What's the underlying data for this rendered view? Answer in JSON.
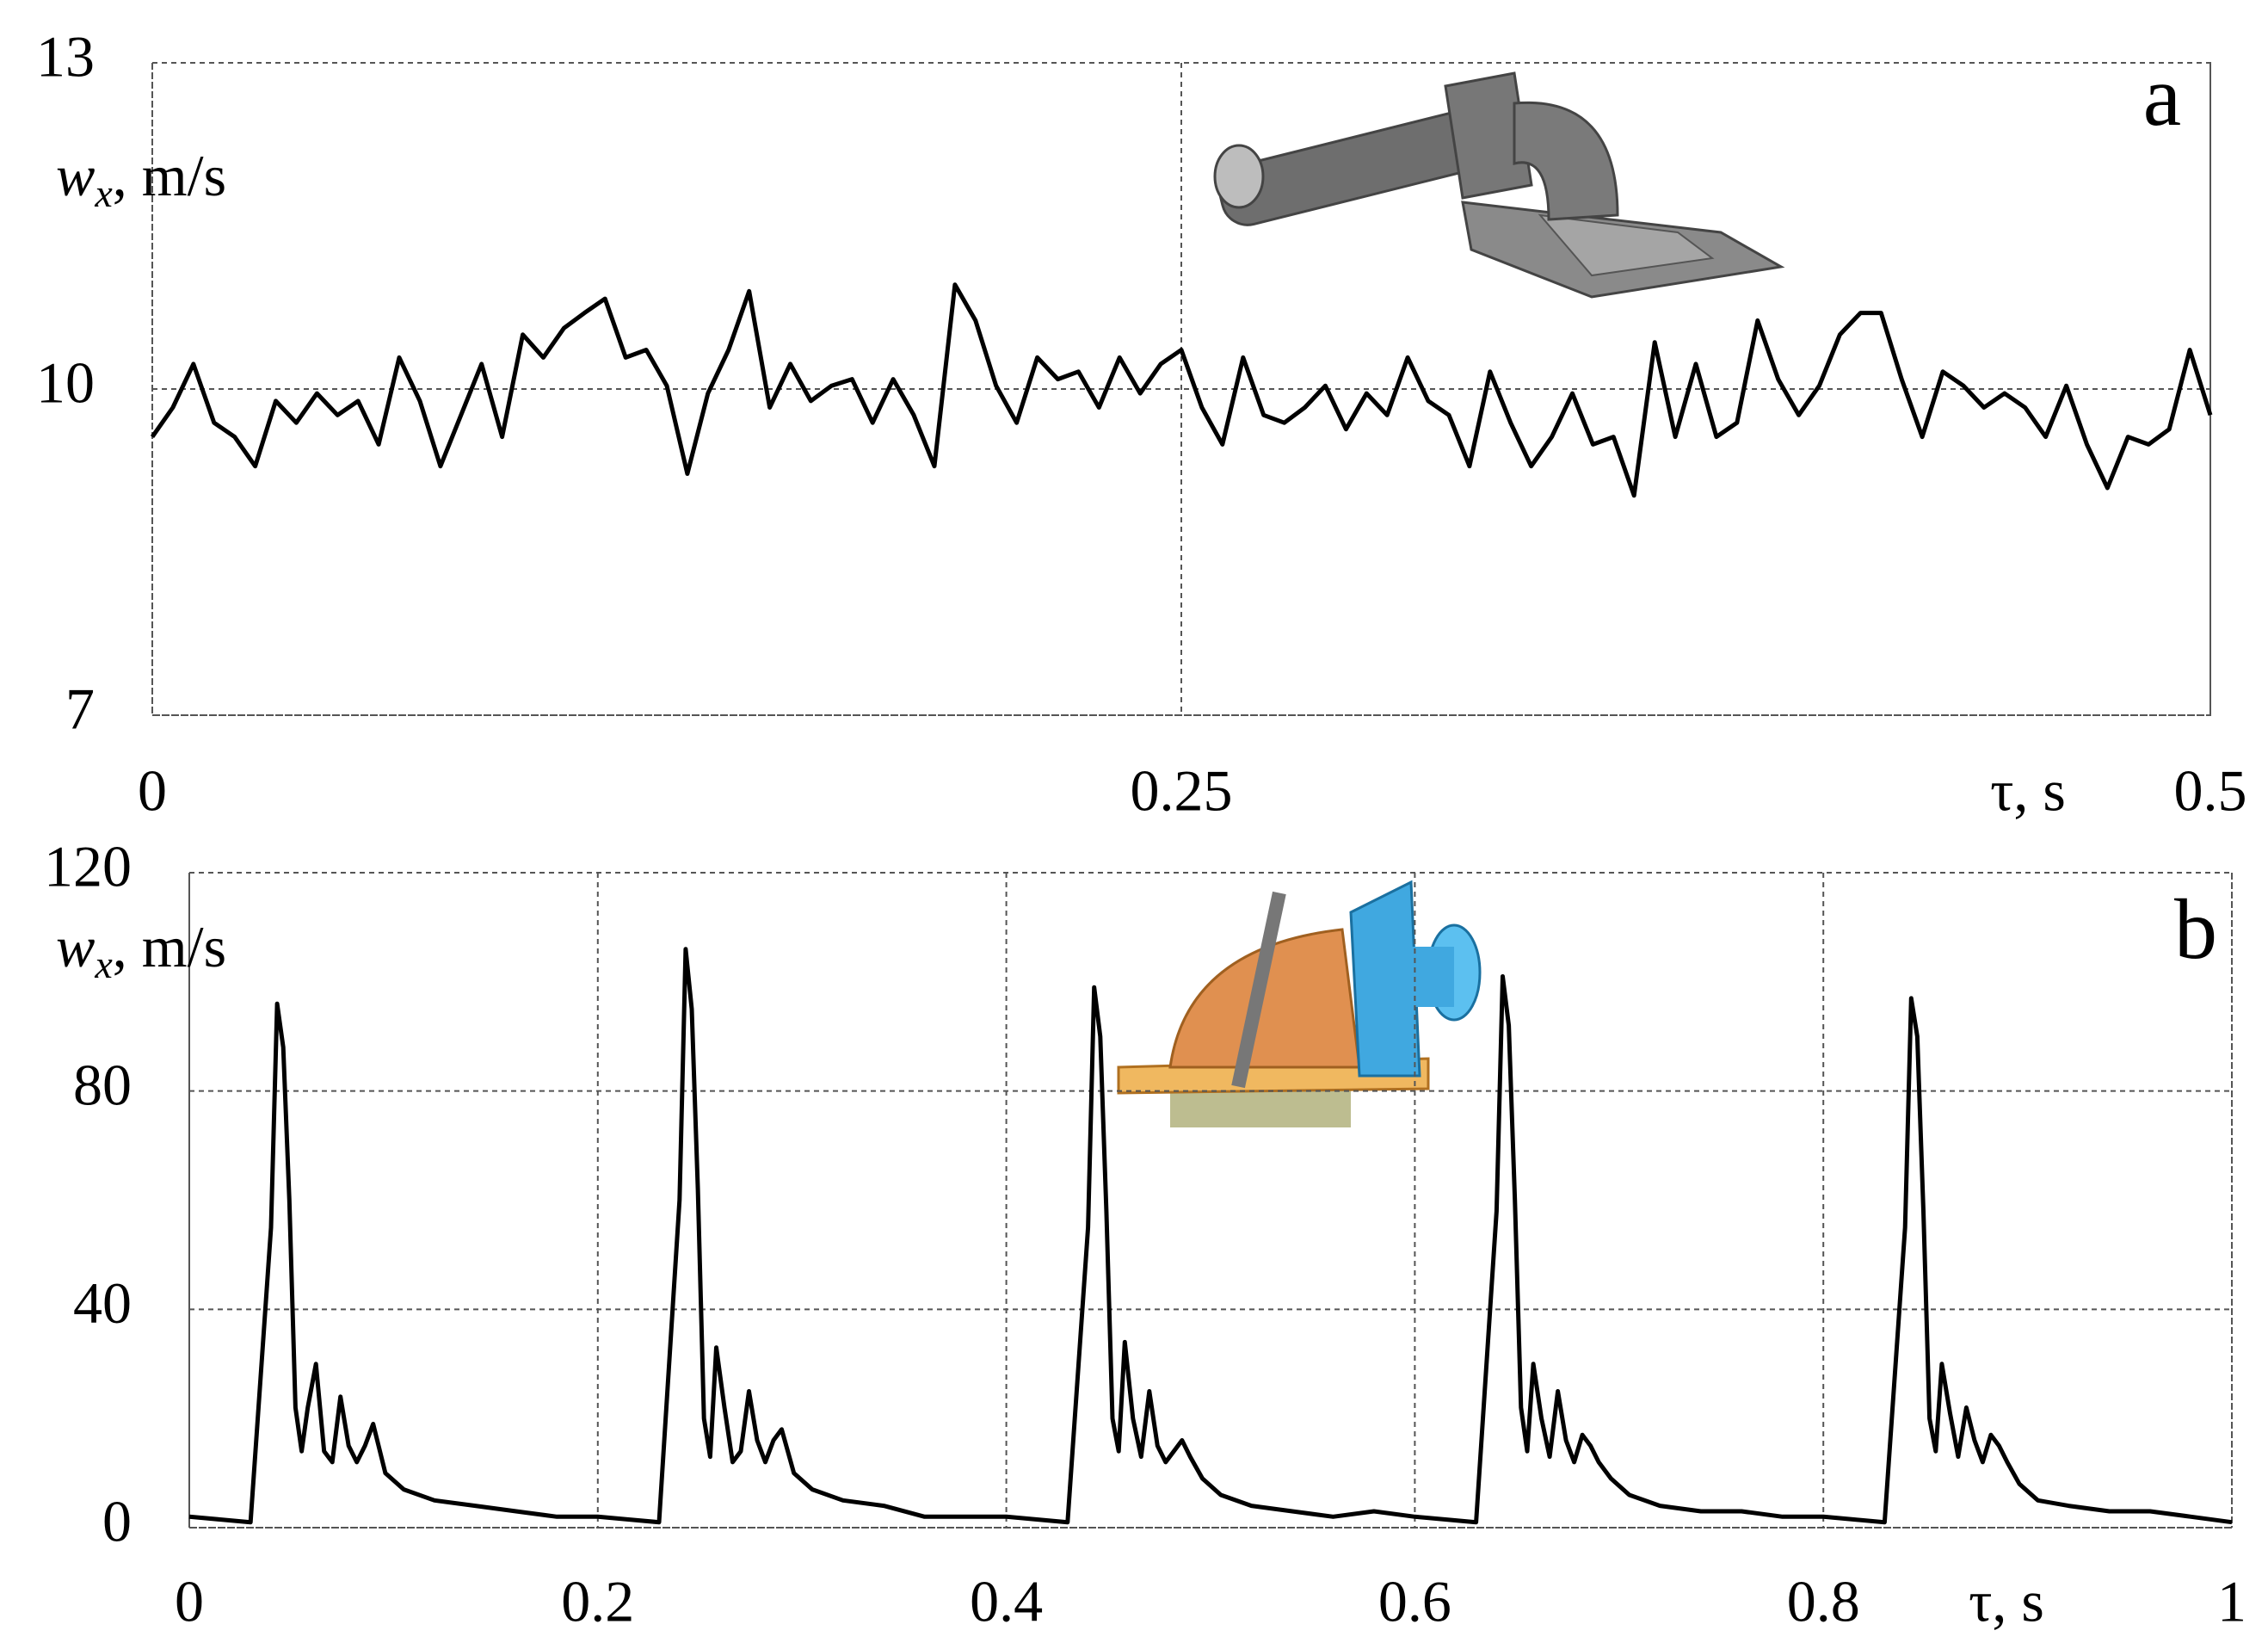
{
  "chart_data": [
    {
      "type": "line",
      "panel_label": "a",
      "xlabel": "τ, s",
      "ylabel": {
        "symbol": "w",
        "subscript": "x",
        "unit": ", m/s"
      },
      "xlim": [
        0,
        0.5
      ],
      "ylim": [
        7,
        13
      ],
      "xticks": [
        0,
        0.25,
        0.5
      ],
      "yticks": [
        7,
        10,
        13
      ],
      "grid": true,
      "color": "#000000",
      "x": [
        0,
        0.005,
        0.01,
        0.015,
        0.02,
        0.025,
        0.03,
        0.035,
        0.04,
        0.045,
        0.05,
        0.055,
        0.06,
        0.065,
        0.07,
        0.075,
        0.08,
        0.085,
        0.09,
        0.095,
        0.1,
        0.105,
        0.11,
        0.115,
        0.12,
        0.125,
        0.13,
        0.135,
        0.14,
        0.145,
        0.15,
        0.155,
        0.16,
        0.165,
        0.17,
        0.175,
        0.18,
        0.185,
        0.19,
        0.195,
        0.2,
        0.205,
        0.21,
        0.215,
        0.22,
        0.225,
        0.23,
        0.235,
        0.24,
        0.245,
        0.25,
        0.255,
        0.26,
        0.265,
        0.27,
        0.275,
        0.28,
        0.285,
        0.29,
        0.295,
        0.3,
        0.305,
        0.31,
        0.315,
        0.32,
        0.325,
        0.33,
        0.335,
        0.34,
        0.345,
        0.35,
        0.355,
        0.36,
        0.365,
        0.37,
        0.375,
        0.38,
        0.385,
        0.39,
        0.395,
        0.4,
        0.405,
        0.41,
        0.415,
        0.42,
        0.425,
        0.43,
        0.435,
        0.44,
        0.445,
        0.45,
        0.455,
        0.46,
        0.465,
        0.47,
        0.475,
        0.48,
        0.485,
        0.49,
        0.495,
        0.5
      ],
      "values": [
        9.56,
        9.83,
        10.23,
        9.69,
        9.56,
        9.29,
        9.89,
        9.69,
        9.96,
        9.76,
        9.89,
        9.49,
        10.29,
        9.89,
        9.29,
        9.76,
        10.23,
        9.56,
        10.5,
        10.29,
        10.56,
        10.7,
        10.83,
        10.29,
        10.36,
        10.03,
        9.22,
        9.96,
        10.36,
        10.9,
        9.83,
        10.23,
        9.89,
        10.03,
        10.09,
        9.69,
        10.09,
        9.76,
        9.29,
        10.96,
        10.63,
        10.03,
        9.69,
        10.29,
        10.09,
        10.16,
        9.83,
        10.29,
        9.96,
        10.23,
        10.36,
        9.83,
        9.49,
        10.29,
        9.76,
        9.69,
        9.83,
        10.03,
        9.63,
        9.96,
        9.76,
        10.29,
        9.89,
        9.76,
        9.29,
        10.16,
        9.69,
        9.29,
        9.56,
        9.96,
        9.49,
        9.56,
        9.02,
        10.43,
        9.56,
        10.23,
        9.56,
        9.69,
        10.63,
        10.09,
        9.76,
        10.03,
        10.5,
        10.7,
        10.7,
        10.09,
        9.56,
        10.16,
        10.03,
        9.83,
        9.96,
        9.83,
        9.56,
        10.03,
        9.49,
        9.09,
        9.56,
        9.49,
        9.63,
        10.36,
        9.76
      ]
    },
    {
      "type": "line",
      "panel_label": "b",
      "xlabel": "τ, s",
      "ylabel": {
        "symbol": "w",
        "subscript": "x",
        "unit": ", m/s"
      },
      "xlim": [
        0,
        1
      ],
      "ylim": [
        0,
        120
      ],
      "xticks": [
        0,
        0.2,
        0.4,
        0.6,
        0.8,
        1
      ],
      "yticks": [
        0,
        40,
        80,
        120
      ],
      "grid": true,
      "color": "#000000",
      "x": [
        0,
        0.015,
        0.03,
        0.04,
        0.043,
        0.046,
        0.049,
        0.052,
        0.055,
        0.058,
        0.062,
        0.066,
        0.07,
        0.074,
        0.078,
        0.082,
        0.086,
        0.09,
        0.096,
        0.105,
        0.12,
        0.14,
        0.16,
        0.18,
        0.2,
        0.215,
        0.23,
        0.24,
        0.243,
        0.246,
        0.249,
        0.252,
        0.255,
        0.258,
        0.262,
        0.266,
        0.27,
        0.274,
        0.278,
        0.282,
        0.286,
        0.29,
        0.296,
        0.305,
        0.32,
        0.34,
        0.36,
        0.38,
        0.4,
        0.415,
        0.43,
        0.44,
        0.443,
        0.446,
        0.449,
        0.452,
        0.455,
        0.458,
        0.462,
        0.466,
        0.47,
        0.474,
        0.478,
        0.482,
        0.486,
        0.49,
        0.496,
        0.505,
        0.52,
        0.54,
        0.56,
        0.58,
        0.6,
        0.615,
        0.63,
        0.64,
        0.643,
        0.646,
        0.649,
        0.652,
        0.655,
        0.658,
        0.662,
        0.666,
        0.67,
        0.674,
        0.678,
        0.682,
        0.686,
        0.69,
        0.696,
        0.705,
        0.72,
        0.74,
        0.76,
        0.78,
        0.8,
        0.815,
        0.83,
        0.84,
        0.843,
        0.846,
        0.849,
        0.852,
        0.855,
        0.858,
        0.862,
        0.866,
        0.87,
        0.874,
        0.878,
        0.882,
        0.886,
        0.89,
        0.896,
        0.905,
        0.92,
        0.94,
        0.96,
        0.98,
        1
      ],
      "values": [
        2,
        1.5,
        1,
        55,
        96,
        88,
        60,
        22,
        14,
        22,
        30,
        14,
        12,
        24,
        15,
        12,
        15,
        19,
        10,
        7,
        5,
        4,
        3,
        2,
        2,
        1.5,
        1,
        60,
        106,
        95,
        62,
        20,
        13,
        33,
        22,
        12,
        14,
        25,
        16,
        12,
        16,
        18,
        10,
        7,
        5,
        4,
        2,
        2,
        2,
        1.5,
        1,
        55,
        99,
        90,
        58,
        20,
        14,
        34,
        20,
        13,
        25,
        15,
        12,
        14,
        16,
        13,
        9,
        6,
        4,
        3,
        2,
        3,
        2,
        1.5,
        1,
        58,
        101,
        92,
        60,
        22,
        14,
        30,
        20,
        13,
        25,
        16,
        12,
        17,
        15,
        12,
        9,
        6,
        4,
        3,
        3,
        2,
        2,
        1.5,
        1,
        55,
        97,
        90,
        58,
        20,
        14,
        30,
        21,
        13,
        22,
        16,
        12,
        17,
        15,
        12,
        8,
        5,
        4,
        3,
        3,
        2,
        1
      ]
    }
  ]
}
